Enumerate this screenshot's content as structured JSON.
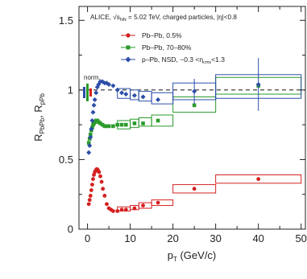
{
  "chart_data": {
    "type": "scatter",
    "experiment": "ALICE, √s",
    "energy_sub": "NN",
    "condition": " = 5.02 TeV, charged particles, |η|<0.8",
    "xlabel": "p",
    "xlabel_sub": "T",
    "xlabel_unit": " (GeV/c)",
    "ylabel": "R",
    "ylabel_sub1": "PbPb",
    "ylabel_sep": ", R",
    "ylabel_sub2": "pPb",
    "xlim": [
      -2,
      51
    ],
    "ylim": [
      0,
      1.6
    ],
    "x_ticks": [
      0,
      10,
      20,
      30,
      40,
      50
    ],
    "y_ticks": [
      0,
      0.5,
      1,
      1.5
    ],
    "y_tick_labels": [
      "0",
      "0.5",
      "1",
      "1.5"
    ],
    "reference_line": 1,
    "norm_label": "norm.",
    "legend_position": "top-left",
    "series": [
      {
        "name": "Pb–Pb, 0.5%",
        "color": "#d42020",
        "marker": "circle",
        "x": [
          0.3,
          0.5,
          0.7,
          0.9,
          1.1,
          1.3,
          1.5,
          1.7,
          1.9,
          2.1,
          2.3,
          2.5,
          2.7,
          3.0,
          3.3,
          3.6,
          4.0,
          4.5,
          5.0,
          5.5,
          6.0,
          7.0,
          8.0,
          9.0,
          11.0,
          13.0,
          16.5,
          25.0,
          40.0
        ],
        "y": [
          0.18,
          0.21,
          0.24,
          0.28,
          0.32,
          0.36,
          0.39,
          0.41,
          0.42,
          0.43,
          0.43,
          0.42,
          0.41,
          0.38,
          0.34,
          0.29,
          0.24,
          0.18,
          0.15,
          0.14,
          0.13,
          0.13,
          0.14,
          0.14,
          0.15,
          0.17,
          0.19,
          0.29,
          0.36
        ],
        "sys_boxes": [
          {
            "x0": 7,
            "x1": 10,
            "y0": 0.13,
            "y1": 0.16
          },
          {
            "x0": 10,
            "x1": 12,
            "y0": 0.14,
            "y1": 0.17
          },
          {
            "x0": 12,
            "x1": 15,
            "y0": 0.15,
            "y1": 0.19
          },
          {
            "x0": 15,
            "x1": 20,
            "y0": 0.17,
            "y1": 0.21
          },
          {
            "x0": 20,
            "x1": 30,
            "y0": 0.26,
            "y1": 0.32
          },
          {
            "x0": 30,
            "x1": 50,
            "y0": 0.33,
            "y1": 0.39
          }
        ]
      },
      {
        "name": "Pb–Pb, 70–80%",
        "color": "#2a9a2a",
        "marker": "square",
        "x": [
          0.3,
          0.5,
          0.7,
          0.9,
          1.1,
          1.3,
          1.5,
          1.7,
          2.0,
          2.3,
          2.6,
          3.0,
          3.5,
          4.0,
          4.5,
          5.0,
          6.0,
          7.0,
          8.0,
          9.0,
          11.0,
          13.0,
          16.5,
          25.0,
          40.0
        ],
        "y": [
          0.62,
          0.65,
          0.68,
          0.71,
          0.73,
          0.75,
          0.76,
          0.77,
          0.78,
          0.78,
          0.77,
          0.76,
          0.75,
          0.74,
          0.74,
          0.74,
          0.74,
          0.75,
          0.75,
          0.75,
          0.76,
          0.76,
          0.78,
          0.89,
          1.03
        ],
        "sys_boxes": [
          {
            "x0": 7,
            "x1": 10,
            "y0": 0.72,
            "y1": 0.78
          },
          {
            "x0": 10,
            "x1": 12,
            "y0": 0.73,
            "y1": 0.79
          },
          {
            "x0": 12,
            "x1": 15,
            "y0": 0.74,
            "y1": 0.8
          },
          {
            "x0": 15,
            "x1": 20,
            "y0": 0.74,
            "y1": 0.82
          },
          {
            "x0": 20,
            "x1": 30,
            "y0": 0.84,
            "y1": 0.95
          },
          {
            "x0": 30,
            "x1": 50,
            "y0": 0.97,
            "y1": 1.09
          }
        ]
      },
      {
        "name": "p–Pb, NSD, −0.3 <η",
        "name_sub": "cms",
        "name_suffix": "<1.3",
        "color": "#2c4ea8",
        "marker": "diamond",
        "x": [
          0.3,
          0.5,
          0.7,
          0.9,
          1.1,
          1.3,
          1.5,
          1.7,
          2.0,
          2.3,
          2.6,
          3.0,
          3.5,
          4.0,
          4.5,
          5.0,
          6.0,
          7.0,
          8.0,
          9.0,
          11.0,
          13.0,
          16.5,
          25.0,
          40.0
        ],
        "y": [
          0.55,
          0.6,
          0.66,
          0.72,
          0.78,
          0.84,
          0.89,
          0.93,
          0.98,
          1.02,
          1.04,
          1.06,
          1.06,
          1.05,
          1.05,
          1.04,
          1.03,
          1.0,
          0.98,
          0.97,
          0.96,
          0.95,
          0.93,
          0.99,
          1.04
        ],
        "sys_boxes": [
          {
            "x0": 7,
            "x1": 10,
            "y0": 0.94,
            "y1": 1.01
          },
          {
            "x0": 10,
            "x1": 12,
            "y0": 0.93,
            "y1": 1.0
          },
          {
            "x0": 12,
            "x1": 15,
            "y0": 0.92,
            "y1": 0.99
          },
          {
            "x0": 15,
            "x1": 20,
            "y0": 0.9,
            "y1": 0.98
          },
          {
            "x0": 20,
            "x1": 30,
            "y0": 0.93,
            "y1": 1.05
          },
          {
            "x0": 30,
            "x1": 50,
            "y0": 0.94,
            "y1": 1.11
          }
        ],
        "error_bars": [
          {
            "x": 25.0,
            "lo": 0.9,
            "hi": 1.08
          },
          {
            "x": 40.0,
            "lo": 0.85,
            "hi": 1.23
          }
        ]
      }
    ]
  }
}
